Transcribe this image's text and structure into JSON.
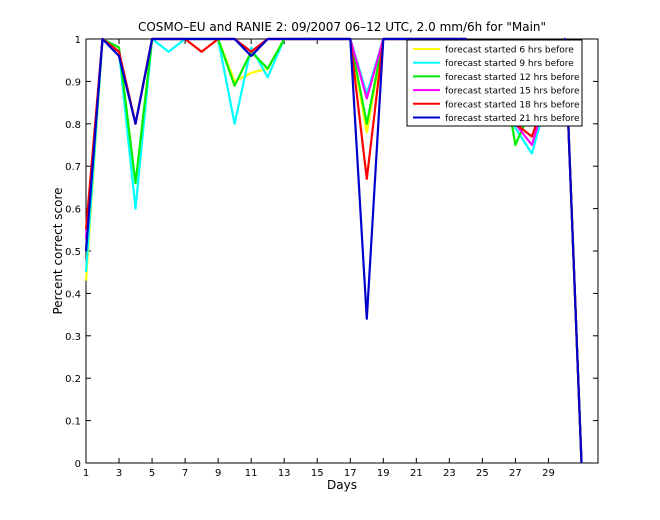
{
  "chart_data": {
    "type": "line",
    "title": "COSMO–EU and RANIE 2: 09/2007 06–12 UTC, 2.0 mm/6h for \"Main\"",
    "xlabel": "Days",
    "ylabel": "Percent correct score",
    "xlim": [
      1,
      32
    ],
    "ylim": [
      0,
      1
    ],
    "xticks": [
      1,
      3,
      5,
      7,
      9,
      11,
      13,
      15,
      17,
      19,
      21,
      23,
      25,
      27,
      29
    ],
    "yticks": [
      "0",
      "0.1",
      "0.2",
      "0.3",
      "0.4",
      "0.5",
      "0.6",
      "0.7",
      "0.8",
      "0.9",
      "1"
    ],
    "legend_position": "top-right",
    "grid": false,
    "x": [
      1,
      2,
      3,
      4,
      5,
      6,
      7,
      8,
      9,
      10,
      11,
      12,
      13,
      14,
      15,
      16,
      17,
      18,
      19,
      20,
      21,
      22,
      23,
      24,
      25,
      26,
      27,
      28,
      29,
      30,
      31
    ],
    "series": [
      {
        "name": "forecast started 6 hrs before",
        "color": "#ffff00",
        "values": [
          0.43,
          1.0,
          0.97,
          0.8,
          1.0,
          1.0,
          1.0,
          1.0,
          1.0,
          0.9,
          0.92,
          0.93,
          1.0,
          1.0,
          1.0,
          1.0,
          1.0,
          0.78,
          1.0,
          1.0,
          1.0,
          1.0,
          1.0,
          1.0,
          0.93,
          0.97,
          0.82,
          0.8,
          0.9,
          1.0,
          0.0
        ]
      },
      {
        "name": "forecast started 9 hrs before",
        "color": "#00ffff",
        "values": [
          0.45,
          1.0,
          0.97,
          0.6,
          1.0,
          0.97,
          1.0,
          1.0,
          1.0,
          0.8,
          0.98,
          0.91,
          1.0,
          1.0,
          1.0,
          1.0,
          1.0,
          0.87,
          1.0,
          1.0,
          1.0,
          1.0,
          1.0,
          1.0,
          0.82,
          0.94,
          0.79,
          0.73,
          0.87,
          1.0,
          0.0
        ]
      },
      {
        "name": "forecast started 12 hrs before",
        "color": "#00ee00",
        "values": [
          0.5,
          1.0,
          0.98,
          0.66,
          1.0,
          1.0,
          1.0,
          1.0,
          1.0,
          0.89,
          0.97,
          0.93,
          1.0,
          1.0,
          1.0,
          1.0,
          1.0,
          0.8,
          1.0,
          1.0,
          1.0,
          1.0,
          1.0,
          1.0,
          0.93,
          0.98,
          0.75,
          0.84,
          0.9,
          1.0,
          0.0
        ]
      },
      {
        "name": "forecast started 15 hrs before",
        "color": "#ff00ff",
        "values": [
          0.53,
          1.0,
          0.97,
          0.8,
          1.0,
          1.0,
          1.0,
          1.0,
          1.0,
          1.0,
          0.97,
          1.0,
          1.0,
          1.0,
          1.0,
          1.0,
          1.0,
          0.86,
          1.0,
          1.0,
          1.0,
          1.0,
          1.0,
          1.0,
          0.83,
          0.93,
          0.8,
          0.75,
          0.88,
          1.0,
          0.0
        ]
      },
      {
        "name": "forecast started 18 hrs before",
        "color": "#ff0000",
        "values": [
          0.55,
          1.0,
          0.97,
          0.8,
          1.0,
          1.0,
          1.0,
          0.97,
          1.0,
          1.0,
          0.97,
          1.0,
          1.0,
          1.0,
          1.0,
          1.0,
          1.0,
          0.67,
          1.0,
          1.0,
          1.0,
          1.0,
          1.0,
          1.0,
          0.82,
          0.93,
          0.8,
          0.77,
          0.88,
          1.0,
          0.0
        ]
      },
      {
        "name": "forecast started 21 hrs before",
        "color": "#0000cc",
        "values": [
          0.5,
          1.0,
          0.96,
          0.8,
          1.0,
          1.0,
          1.0,
          1.0,
          1.0,
          1.0,
          0.96,
          1.0,
          1.0,
          1.0,
          1.0,
          1.0,
          1.0,
          0.34,
          1.0,
          1.0,
          1.0,
          1.0,
          1.0,
          1.0,
          0.8,
          0.93,
          0.8,
          0.86,
          0.89,
          1.0,
          0.0
        ]
      }
    ]
  }
}
